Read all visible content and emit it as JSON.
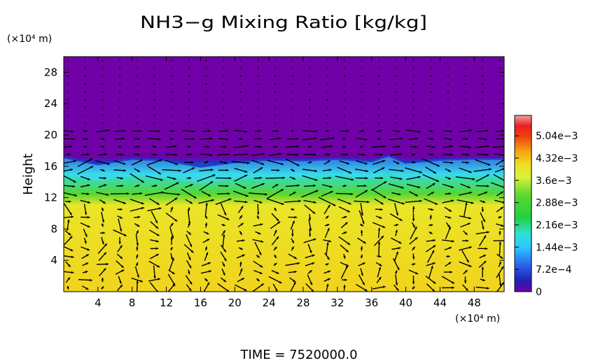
{
  "chart_data": {
    "type": "heatmap",
    "title": "NH3−g Mixing Ratio [kg/kg]",
    "ylabel": "Height",
    "y_unit": "(×10⁴ m)",
    "x_unit": "(×10⁴ m)",
    "xlim": [
      0,
      51.5
    ],
    "ylim": [
      0,
      30
    ],
    "x_ticks": [
      "4",
      "8",
      "12",
      "16",
      "20",
      "24",
      "28",
      "32",
      "36",
      "40",
      "44",
      "48"
    ],
    "y_ticks": [
      "4",
      "8",
      "12",
      "16",
      "20",
      "24",
      "28"
    ],
    "colorbar_ticks": [
      "5.04e−3",
      "4.32e−3",
      "3.6e−3",
      "2.88e−3",
      "2.16e−3",
      "1.44e−3",
      "7.2e−4",
      "0"
    ],
    "colorbar_range": [
      0,
      0.0057
    ],
    "colors": {
      "background_top": "#7000a8",
      "surface_layer": "#d8f23a",
      "transition_layer": "#3ed060",
      "anvil_band": "#50c8ff"
    },
    "profile": [
      {
        "height": 0,
        "value": 0.0042
      },
      {
        "height": 11,
        "value": 0.004
      },
      {
        "height": 12.5,
        "value": 0.003
      },
      {
        "height": 15,
        "value": 0.0018
      },
      {
        "height": 16.5,
        "value": 0.0005
      },
      {
        "height": 17.2,
        "value": 0.0
      },
      {
        "height": 30,
        "value": 0.0
      }
    ],
    "cloud_top_height": [
      {
        "x": 0,
        "y": 17.2
      },
      {
        "x": 4,
        "y": 16.3
      },
      {
        "x": 8,
        "y": 17.0
      },
      {
        "x": 12,
        "y": 16.8
      },
      {
        "x": 16,
        "y": 16.0
      },
      {
        "x": 20,
        "y": 16.6
      },
      {
        "x": 24,
        "y": 16.9
      },
      {
        "x": 28,
        "y": 16.8
      },
      {
        "x": 32,
        "y": 17.0
      },
      {
        "x": 36,
        "y": 16.7
      },
      {
        "x": 38,
        "y": 17.4
      },
      {
        "x": 40,
        "y": 16.5
      },
      {
        "x": 44,
        "y": 16.9
      },
      {
        "x": 48,
        "y": 17.0
      },
      {
        "x": 51.5,
        "y": 17.0
      }
    ],
    "wind_vectors_shown": true
  },
  "footer": {
    "time_label": "TIME = 7520000.0"
  }
}
